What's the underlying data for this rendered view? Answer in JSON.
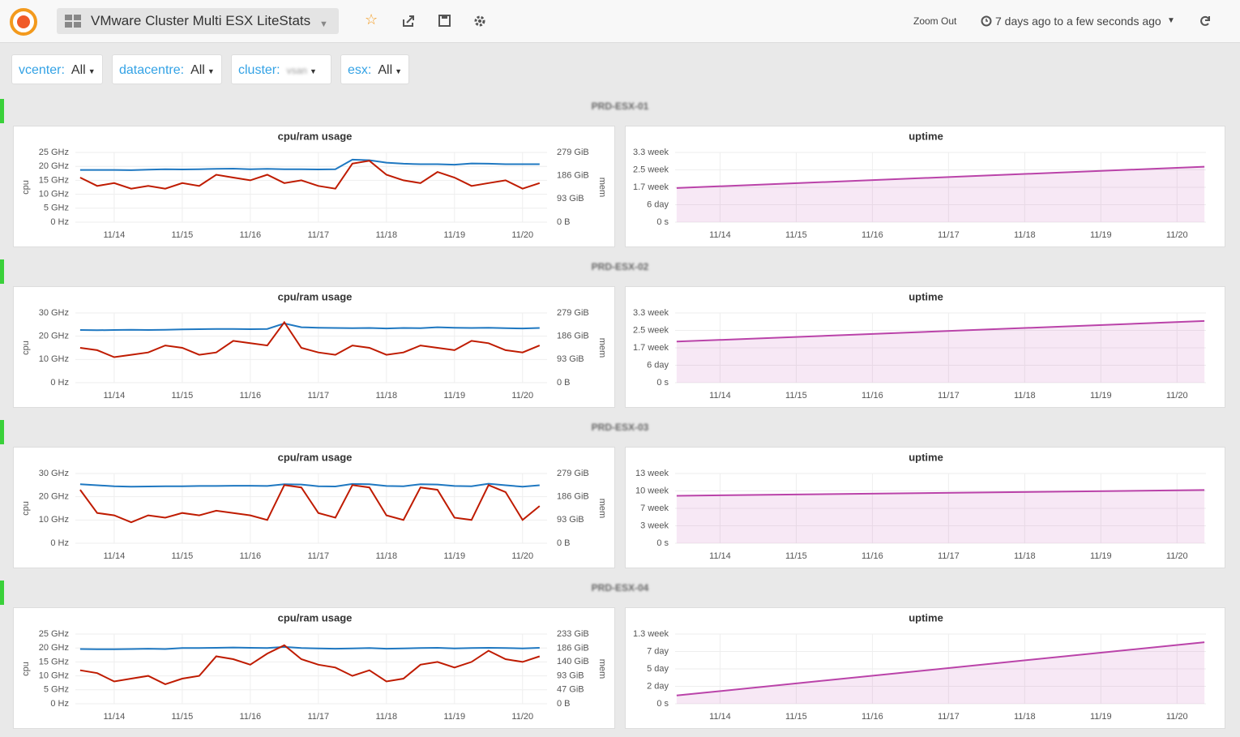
{
  "header": {
    "title": "VMware Cluster Multi ESX LiteStats",
    "zoom_out": "Zoom Out",
    "time_range": "7 days ago to a few seconds ago"
  },
  "variables": [
    {
      "label": "vcenter:",
      "value": "All"
    },
    {
      "label": "datacentre:",
      "value": "All"
    },
    {
      "label": "cluster:",
      "value": "vsan"
    },
    {
      "label": "esx:",
      "value": "All"
    }
  ],
  "rows": [
    {
      "title": "PRD-ESX-01"
    },
    {
      "title": "PRD-ESX-02"
    },
    {
      "title": "PRD-ESX-03"
    },
    {
      "title": "PRD-ESX-04"
    }
  ],
  "chart_data": [
    {
      "type": "line",
      "title": "cpu/ram usage",
      "ylabel": "cpu",
      "y2label": "mem",
      "grid": true,
      "x": [
        13.5,
        13.75,
        14,
        14.25,
        14.5,
        14.75,
        15,
        15.25,
        15.5,
        15.75,
        16,
        16.25,
        16.5,
        16.75,
        17,
        17.25,
        17.5,
        17.75,
        18,
        18.25,
        18.5,
        18.75,
        19,
        19.25,
        19.5,
        19.75,
        20,
        20.25
      ],
      "xlim": [
        13.43,
        20.36
      ],
      "xticks": [
        {
          "value": 14,
          "label": "11/14"
        },
        {
          "value": 15,
          "label": "11/15"
        },
        {
          "value": 16,
          "label": "11/16"
        },
        {
          "value": 17,
          "label": "11/17"
        },
        {
          "value": 18,
          "label": "11/18"
        },
        {
          "value": 19,
          "label": "11/19"
        },
        {
          "value": 20,
          "label": "11/20"
        }
      ],
      "ylim": [
        0,
        25
      ],
      "yticks": [
        {
          "value": 0,
          "label": "0 Hz"
        },
        {
          "value": 5,
          "label": "5 GHz"
        },
        {
          "value": 10,
          "label": "10 GHz"
        },
        {
          "value": 15,
          "label": "15 GHz"
        },
        {
          "value": 20,
          "label": "20 GHz"
        },
        {
          "value": 25,
          "label": "25 GHz"
        }
      ],
      "y2lim": [
        0,
        279
      ],
      "y2ticks": [
        {
          "value": 0,
          "label": "0 B"
        },
        {
          "value": 93,
          "label": "93 GiB"
        },
        {
          "value": 186,
          "label": "186 GiB"
        },
        {
          "value": 279,
          "label": "279 GiB"
        }
      ],
      "series": [
        {
          "color": "#1f78c1",
          "axis": "y2",
          "values": [
            209,
            209,
            209,
            208,
            210,
            212,
            211,
            212,
            213,
            214,
            212,
            213,
            212,
            212,
            211,
            212,
            250,
            248,
            238,
            234,
            232,
            232,
            230,
            235,
            234,
            232,
            232,
            232
          ]
        },
        {
          "color": "#bf1b00",
          "values": [
            16,
            13,
            14,
            12,
            13,
            12,
            14,
            13,
            17,
            16,
            15,
            17,
            14,
            15,
            13,
            12,
            21,
            22,
            17,
            15,
            14,
            18,
            16,
            13,
            14,
            15,
            12,
            14
          ]
        }
      ]
    },
    {
      "type": "area",
      "title": "uptime",
      "grid": true,
      "x": [
        13.43,
        20.36
      ],
      "xlim": [
        13.41,
        20.38
      ],
      "xticks": [
        {
          "value": 14,
          "label": "11/14"
        },
        {
          "value": 15,
          "label": "11/15"
        },
        {
          "value": 16,
          "label": "11/16"
        },
        {
          "value": 17,
          "label": "11/17"
        },
        {
          "value": 18,
          "label": "11/18"
        },
        {
          "value": 19,
          "label": "11/19"
        },
        {
          "value": 20,
          "label": "11/20"
        }
      ],
      "ylim": [
        0,
        2000000
      ],
      "yticks": [
        {
          "value": 0,
          "label": "0 s"
        },
        {
          "value": 500000,
          "label": "6 day"
        },
        {
          "value": 1000000,
          "label": "1.7 week"
        },
        {
          "value": 1500000,
          "label": "2.5 week"
        },
        {
          "value": 2000000,
          "label": "3.3 week"
        }
      ],
      "series": [
        {
          "color": "#ba43a9",
          "values": [
            980000,
            1590000
          ]
        }
      ]
    },
    {
      "type": "line",
      "title": "cpu/ram usage",
      "ylabel": "cpu",
      "y2label": "mem",
      "grid": true,
      "x": [
        13.5,
        13.75,
        14,
        14.25,
        14.5,
        14.75,
        15,
        15.25,
        15.5,
        15.75,
        16,
        16.25,
        16.5,
        16.75,
        17,
        17.25,
        17.5,
        17.75,
        18,
        18.25,
        18.5,
        18.75,
        19,
        19.25,
        19.5,
        19.75,
        20,
        20.25
      ],
      "xlim": [
        13.43,
        20.36
      ],
      "xticks": [
        {
          "value": 14,
          "label": "11/14"
        },
        {
          "value": 15,
          "label": "11/15"
        },
        {
          "value": 16,
          "label": "11/16"
        },
        {
          "value": 17,
          "label": "11/17"
        },
        {
          "value": 18,
          "label": "11/18"
        },
        {
          "value": 19,
          "label": "11/19"
        },
        {
          "value": 20,
          "label": "11/20"
        }
      ],
      "ylim": [
        0,
        30
      ],
      "yticks": [
        {
          "value": 0,
          "label": "0 Hz"
        },
        {
          "value": 10,
          "label": "10 GHz"
        },
        {
          "value": 20,
          "label": "20 GHz"
        },
        {
          "value": 30,
          "label": "30 GHz"
        }
      ],
      "y2lim": [
        0,
        279
      ],
      "y2ticks": [
        {
          "value": 0,
          "label": "0 B"
        },
        {
          "value": 93,
          "label": "93 GiB"
        },
        {
          "value": 186,
          "label": "186 GiB"
        },
        {
          "value": 279,
          "label": "279 GiB"
        }
      ],
      "series": [
        {
          "color": "#1f78c1",
          "axis": "y2",
          "values": [
            211,
            210,
            211,
            212,
            211,
            212,
            213,
            214,
            215,
            215,
            214,
            215,
            237,
            222,
            220,
            219,
            218,
            219,
            217,
            219,
            218,
            222,
            220,
            219,
            220,
            218,
            217,
            219
          ]
        },
        {
          "color": "#bf1b00",
          "values": [
            15,
            14,
            11,
            12,
            13,
            16,
            15,
            12,
            13,
            18,
            17,
            16,
            26,
            15,
            13,
            12,
            16,
            15,
            12,
            13,
            16,
            15,
            14,
            18,
            17,
            14,
            13,
            16
          ]
        }
      ]
    },
    {
      "type": "area",
      "title": "uptime",
      "grid": true,
      "x": [
        13.43,
        20.36
      ],
      "xlim": [
        13.41,
        20.38
      ],
      "xticks": [
        {
          "value": 14,
          "label": "11/14"
        },
        {
          "value": 15,
          "label": "11/15"
        },
        {
          "value": 16,
          "label": "11/16"
        },
        {
          "value": 17,
          "label": "11/17"
        },
        {
          "value": 18,
          "label": "11/18"
        },
        {
          "value": 19,
          "label": "11/19"
        },
        {
          "value": 20,
          "label": "11/20"
        }
      ],
      "ylim": [
        0,
        2000000
      ],
      "yticks": [
        {
          "value": 0,
          "label": "0 s"
        },
        {
          "value": 500000,
          "label": "6 day"
        },
        {
          "value": 1000000,
          "label": "1.7 week"
        },
        {
          "value": 1500000,
          "label": "2.5 week"
        },
        {
          "value": 2000000,
          "label": "3.3 week"
        }
      ],
      "series": [
        {
          "color": "#ba43a9",
          "values": [
            1180000,
            1770000
          ]
        }
      ]
    },
    {
      "type": "line",
      "title": "cpu/ram usage",
      "ylabel": "cpu",
      "y2label": "mem",
      "grid": true,
      "x": [
        13.5,
        13.75,
        14,
        14.25,
        14.5,
        14.75,
        15,
        15.25,
        15.5,
        15.75,
        16,
        16.25,
        16.5,
        16.75,
        17,
        17.25,
        17.5,
        17.75,
        18,
        18.25,
        18.5,
        18.75,
        19,
        19.25,
        19.5,
        19.75,
        20,
        20.25
      ],
      "xlim": [
        13.43,
        20.36
      ],
      "xticks": [
        {
          "value": 14,
          "label": "11/14"
        },
        {
          "value": 15,
          "label": "11/15"
        },
        {
          "value": 16,
          "label": "11/16"
        },
        {
          "value": 17,
          "label": "11/17"
        },
        {
          "value": 18,
          "label": "11/18"
        },
        {
          "value": 19,
          "label": "11/19"
        },
        {
          "value": 20,
          "label": "11/20"
        }
      ],
      "ylim": [
        0,
        30
      ],
      "yticks": [
        {
          "value": 0,
          "label": "0 Hz"
        },
        {
          "value": 10,
          "label": "10 GHz"
        },
        {
          "value": 20,
          "label": "20 GHz"
        },
        {
          "value": 30,
          "label": "30 GHz"
        }
      ],
      "y2lim": [
        0,
        279
      ],
      "y2ticks": [
        {
          "value": 0,
          "label": "0 B"
        },
        {
          "value": 93,
          "label": "93 GiB"
        },
        {
          "value": 186,
          "label": "186 GiB"
        },
        {
          "value": 279,
          "label": "279 GiB"
        }
      ],
      "series": [
        {
          "color": "#1f78c1",
          "axis": "y2",
          "values": [
            236,
            232,
            228,
            226,
            227,
            228,
            228,
            229,
            229,
            230,
            230,
            229,
            236,
            235,
            228,
            227,
            237,
            236,
            229,
            228,
            236,
            235,
            229,
            228,
            238,
            232,
            226,
            232
          ]
        },
        {
          "color": "#bf1b00",
          "values": [
            23,
            13,
            12,
            9,
            12,
            11,
            13,
            12,
            14,
            13,
            12,
            10,
            25,
            24,
            13,
            11,
            25,
            24,
            12,
            10,
            24,
            23,
            11,
            10,
            25,
            22,
            10,
            16
          ]
        }
      ]
    },
    {
      "type": "area",
      "title": "uptime",
      "grid": true,
      "x": [
        13.43,
        20.36
      ],
      "xlim": [
        13.41,
        20.38
      ],
      "xticks": [
        {
          "value": 14,
          "label": "11/14"
        },
        {
          "value": 15,
          "label": "11/15"
        },
        {
          "value": 16,
          "label": "11/16"
        },
        {
          "value": 17,
          "label": "11/17"
        },
        {
          "value": 18,
          "label": "11/18"
        },
        {
          "value": 19,
          "label": "11/19"
        },
        {
          "value": 20,
          "label": "11/20"
        }
      ],
      "ylim": [
        0,
        8000000
      ],
      "yticks": [
        {
          "value": 0,
          "label": "0 s"
        },
        {
          "value": 2000000,
          "label": "3 week"
        },
        {
          "value": 4000000,
          "label": "7 week"
        },
        {
          "value": 6000000,
          "label": "10 week"
        },
        {
          "value": 8000000,
          "label": "13 week"
        }
      ],
      "series": [
        {
          "color": "#ba43a9",
          "values": [
            5440000,
            6100000
          ]
        }
      ]
    },
    {
      "type": "line",
      "title": "cpu/ram usage",
      "ylabel": "cpu",
      "y2label": "mem",
      "grid": true,
      "x": [
        13.5,
        13.75,
        14,
        14.25,
        14.5,
        14.75,
        15,
        15.25,
        15.5,
        15.75,
        16,
        16.25,
        16.5,
        16.75,
        17,
        17.25,
        17.5,
        17.75,
        18,
        18.25,
        18.5,
        18.75,
        19,
        19.25,
        19.5,
        19.75,
        20,
        20.25
      ],
      "xlim": [
        13.43,
        20.36
      ],
      "xticks": [
        {
          "value": 14,
          "label": "11/14"
        },
        {
          "value": 15,
          "label": "11/15"
        },
        {
          "value": 16,
          "label": "11/16"
        },
        {
          "value": 17,
          "label": "11/17"
        },
        {
          "value": 18,
          "label": "11/18"
        },
        {
          "value": 19,
          "label": "11/19"
        },
        {
          "value": 20,
          "label": "11/20"
        }
      ],
      "ylim": [
        0,
        25
      ],
      "yticks": [
        {
          "value": 0,
          "label": "0 Hz"
        },
        {
          "value": 5,
          "label": "5 GHz"
        },
        {
          "value": 10,
          "label": "10 GHz"
        },
        {
          "value": 15,
          "label": "15 GHz"
        },
        {
          "value": 20,
          "label": "20 GHz"
        },
        {
          "value": 25,
          "label": "25 GHz"
        }
      ],
      "y2lim": [
        0,
        233
      ],
      "y2ticks": [
        {
          "value": 0,
          "label": "0 B"
        },
        {
          "value": 47,
          "label": "47 GiB"
        },
        {
          "value": 93,
          "label": "93 GiB"
        },
        {
          "value": 140,
          "label": "140 GiB"
        },
        {
          "value": 186,
          "label": "186 GiB"
        },
        {
          "value": 233,
          "label": "233 GiB"
        }
      ],
      "series": [
        {
          "color": "#1f78c1",
          "axis": "y2",
          "values": [
            183,
            182,
            182,
            183,
            184,
            183,
            186,
            186,
            187,
            188,
            187,
            186,
            190,
            186,
            185,
            184,
            185,
            186,
            184,
            185,
            186,
            187,
            185,
            186,
            187,
            186,
            185,
            187
          ]
        },
        {
          "color": "#bf1b00",
          "values": [
            12,
            11,
            8,
            9,
            10,
            7,
            9,
            10,
            17,
            16,
            14,
            18,
            21,
            16,
            14,
            13,
            10,
            12,
            8,
            9,
            14,
            15,
            13,
            15,
            19,
            16,
            15,
            17
          ]
        }
      ]
    },
    {
      "type": "area",
      "title": "uptime",
      "grid": true,
      "x": [
        13.43,
        20.36
      ],
      "xlim": [
        13.41,
        20.38
      ],
      "xticks": [
        {
          "value": 14,
          "label": "11/14"
        },
        {
          "value": 15,
          "label": "11/15"
        },
        {
          "value": 16,
          "label": "11/16"
        },
        {
          "value": 17,
          "label": "11/17"
        },
        {
          "value": 18,
          "label": "11/18"
        },
        {
          "value": 19,
          "label": "11/19"
        },
        {
          "value": 20,
          "label": "11/20"
        }
      ],
      "ylim": [
        0,
        800000
      ],
      "yticks": [
        {
          "value": 0,
          "label": "0 s"
        },
        {
          "value": 200000,
          "label": "2 day"
        },
        {
          "value": 400000,
          "label": "5 day"
        },
        {
          "value": 600000,
          "label": "7 day"
        },
        {
          "value": 800000,
          "label": "1.3 week"
        }
      ],
      "series": [
        {
          "color": "#ba43a9",
          "values": [
            95000,
            706000
          ]
        }
      ]
    }
  ]
}
